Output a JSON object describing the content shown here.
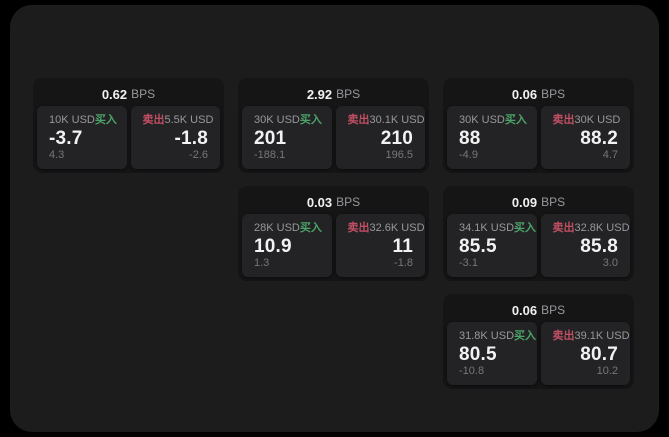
{
  "theme": {
    "page_bg": "#000000",
    "window_bg": "#1c1c1d",
    "card_bg": "#151516",
    "tile_bg": "#232325",
    "text_primary": "#f2f2f3",
    "text_secondary": "#98989c",
    "text_tertiary": "#77777b",
    "buy_color": "#4ba368",
    "sell_color": "#c04f63"
  },
  "labels": {
    "bps": "BPS",
    "buy": "买入",
    "sell": "卖出"
  },
  "grid": {
    "columns": 3,
    "cards": [
      {
        "col": 1,
        "row": 1,
        "bps": "0.62",
        "buy": {
          "amount": "10K USD",
          "price": "-3.7",
          "delta": "4.3"
        },
        "sell": {
          "amount": "5.5K USD",
          "price": "-1.8",
          "delta": "-2.6"
        }
      },
      {
        "col": 2,
        "row": 1,
        "bps": "2.92",
        "buy": {
          "amount": "30K USD",
          "price": "201",
          "delta": "-188.1"
        },
        "sell": {
          "amount": "30.1K USD",
          "price": "210",
          "delta": "196.5"
        }
      },
      {
        "col": 3,
        "row": 1,
        "bps": "0.06",
        "buy": {
          "amount": "30K USD",
          "price": "88",
          "delta": "-4.9"
        },
        "sell": {
          "amount": "30K USD",
          "price": "88.2",
          "delta": "4.7"
        }
      },
      {
        "col": 2,
        "row": 2,
        "bps": "0.03",
        "buy": {
          "amount": "28K USD",
          "price": "10.9",
          "delta": "1.3"
        },
        "sell": {
          "amount": "32.6K USD",
          "price": "11",
          "delta": "-1.8"
        }
      },
      {
        "col": 3,
        "row": 2,
        "bps": "0.09",
        "buy": {
          "amount": "34.1K USD",
          "price": "85.5",
          "delta": "-3.1"
        },
        "sell": {
          "amount": "32.8K USD",
          "price": "85.8",
          "delta": "3.0"
        }
      },
      {
        "col": 3,
        "row": 3,
        "bps": "0.06",
        "buy": {
          "amount": "31.8K USD",
          "price": "80.5",
          "delta": "-10.8"
        },
        "sell": {
          "amount": "39.1K USD",
          "price": "80.7",
          "delta": "10.2"
        }
      }
    ]
  }
}
